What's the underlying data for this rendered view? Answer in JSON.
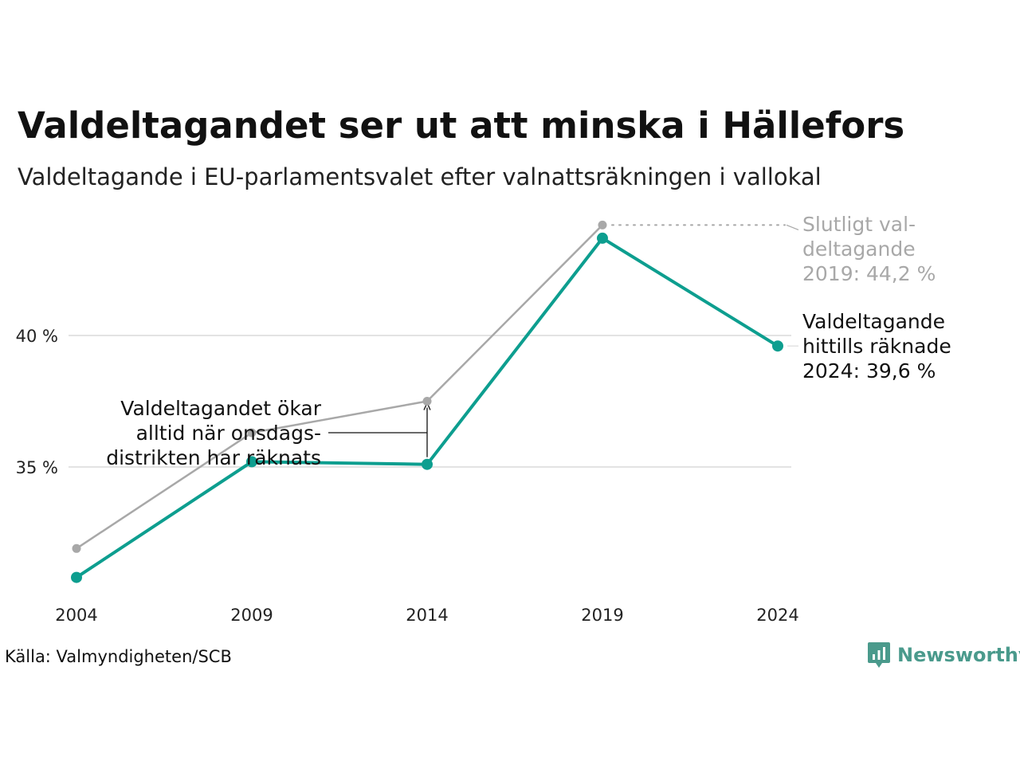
{
  "title": "Valdeltagandet ser ut att minska i Hällefors",
  "subtitle": "Valdeltagande i EU-parlamentsvalet efter valnattsräkningen i vallokal",
  "source": "Källa: Valmyndigheten/SCB",
  "brand": {
    "name": "Newsworthy",
    "icon": "newsworthy-logo-icon"
  },
  "colors": {
    "primary": "#0d9e8f",
    "secondary": "#a8a8a8",
    "gridline": "#e3e3e3",
    "annotation": "#111111",
    "brand": "#4a9a8c"
  },
  "chart_data": {
    "type": "line",
    "title": "Valdeltagandet ser ut att minska i Hällefors",
    "subtitle": "Valdeltagande i EU-parlamentsvalet efter valnattsräkningen i vallokal",
    "x": [
      2004,
      2009,
      2014,
      2019,
      2024
    ],
    "x_tick_labels": [
      "2004",
      "2009",
      "2014",
      "2019",
      "2024"
    ],
    "y_ticks": [
      35,
      40
    ],
    "y_tick_labels": [
      "35 %",
      "40 %"
    ],
    "ylim": [
      30,
      45
    ],
    "grid": "horizontal",
    "series": [
      {
        "name": "",
        "role": "final",
        "color": "#a8a8a8",
        "values": [
          31.9,
          36.3,
          37.5,
          44.2,
          null
        ]
      },
      {
        "name": "",
        "role": "preliminary",
        "color": "#0d9e8f",
        "values": [
          30.8,
          35.2,
          35.1,
          43.7,
          39.6
        ]
      }
    ],
    "annotations": [
      {
        "lines": [
          "Slutligt val-",
          "deltagande",
          "2019: 44,2 %"
        ],
        "color": "#a8a8a8",
        "x": 2019,
        "y": 44.2
      },
      {
        "lines": [
          "Valdeltagande",
          "hittills räknade",
          "2024: 39,6 %"
        ],
        "color": "#111111",
        "x": 2024,
        "y": 39.6
      },
      {
        "lines": [
          "Valdeltagandet ökar",
          "alltid när onsdags-",
          "distrikten har räknats"
        ],
        "color": "#111111",
        "x": 2014,
        "y_from": 35.1,
        "y_to": 37.5
      }
    ]
  }
}
